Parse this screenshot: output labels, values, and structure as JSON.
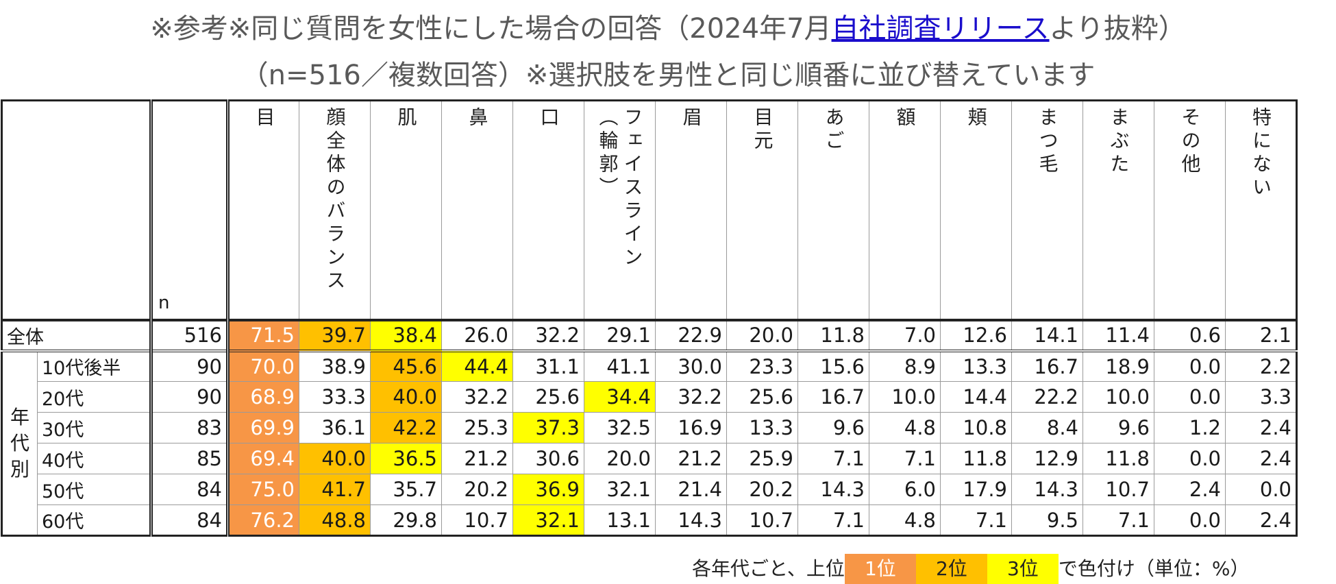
{
  "title_line1_pre": "※参考※同じ質問を女性にした場合の回答（2024年7月",
  "title_link": "自社調査リリース",
  "title_line1_post": "より抜粋）",
  "title_line2": "（n=516／複数回答）※選択肢を男性と同じ順番に並び替えています",
  "header": {
    "n": "n",
    "columns": [
      "目",
      "顔全体のバランス",
      "肌",
      "鼻",
      "口",
      "フェイスライン（輪郭）",
      "眉",
      "目元",
      "あご",
      "額",
      "頬",
      "まつ毛",
      "まぶた",
      "その他",
      "特にない"
    ]
  },
  "group_label": "年代別",
  "rows": [
    {
      "label": "全体",
      "n": "516",
      "values": [
        "71.5",
        "39.7",
        "38.4",
        "26.0",
        "32.2",
        "29.1",
        "22.9",
        "20.0",
        "11.8",
        "7.0",
        "12.6",
        "14.1",
        "11.4",
        "0.6",
        "2.1"
      ],
      "ranks": [
        1,
        2,
        3,
        0,
        0,
        0,
        0,
        0,
        0,
        0,
        0,
        0,
        0,
        0,
        0
      ]
    },
    {
      "label": "10代後半",
      "n": "90",
      "values": [
        "70.0",
        "38.9",
        "45.6",
        "44.4",
        "31.1",
        "41.1",
        "30.0",
        "23.3",
        "15.6",
        "8.9",
        "13.3",
        "16.7",
        "18.9",
        "0.0",
        "2.2"
      ],
      "ranks": [
        1,
        0,
        2,
        3,
        0,
        0,
        0,
        0,
        0,
        0,
        0,
        0,
        0,
        0,
        0
      ]
    },
    {
      "label": "20代",
      "n": "90",
      "values": [
        "68.9",
        "33.3",
        "40.0",
        "32.2",
        "25.6",
        "34.4",
        "32.2",
        "25.6",
        "16.7",
        "10.0",
        "14.4",
        "22.2",
        "10.0",
        "0.0",
        "3.3"
      ],
      "ranks": [
        1,
        0,
        2,
        0,
        0,
        3,
        0,
        0,
        0,
        0,
        0,
        0,
        0,
        0,
        0
      ]
    },
    {
      "label": "30代",
      "n": "83",
      "values": [
        "69.9",
        "36.1",
        "42.2",
        "25.3",
        "37.3",
        "32.5",
        "16.9",
        "13.3",
        "9.6",
        "4.8",
        "10.8",
        "8.4",
        "9.6",
        "1.2",
        "2.4"
      ],
      "ranks": [
        1,
        0,
        2,
        0,
        3,
        0,
        0,
        0,
        0,
        0,
        0,
        0,
        0,
        0,
        0
      ]
    },
    {
      "label": "40代",
      "n": "85",
      "values": [
        "69.4",
        "40.0",
        "36.5",
        "21.2",
        "30.6",
        "20.0",
        "21.2",
        "25.9",
        "7.1",
        "7.1",
        "11.8",
        "12.9",
        "11.8",
        "0.0",
        "2.4"
      ],
      "ranks": [
        1,
        2,
        3,
        0,
        0,
        0,
        0,
        0,
        0,
        0,
        0,
        0,
        0,
        0,
        0
      ]
    },
    {
      "label": "50代",
      "n": "84",
      "values": [
        "75.0",
        "41.7",
        "35.7",
        "20.2",
        "36.9",
        "32.1",
        "21.4",
        "20.2",
        "14.3",
        "6.0",
        "17.9",
        "14.3",
        "10.7",
        "2.4",
        "0.0"
      ],
      "ranks": [
        1,
        2,
        0,
        0,
        3,
        0,
        0,
        0,
        0,
        0,
        0,
        0,
        0,
        0,
        0
      ]
    },
    {
      "label": "60代",
      "n": "84",
      "values": [
        "76.2",
        "48.8",
        "29.8",
        "10.7",
        "32.1",
        "13.1",
        "14.3",
        "10.7",
        "7.1",
        "4.8",
        "7.1",
        "9.5",
        "7.1",
        "0.0",
        "2.4"
      ],
      "ranks": [
        1,
        2,
        0,
        0,
        3,
        0,
        0,
        0,
        0,
        0,
        0,
        0,
        0,
        0,
        0
      ]
    }
  ],
  "legend": {
    "prefix": "各年代ごと、上位",
    "rank1": "1位",
    "rank2": "2位",
    "rank3": "3位",
    "suffix": "で色付け（単位：%）"
  },
  "colors": {
    "rank1": "#f79646",
    "rank2": "#ffc000",
    "rank3": "#ffff00",
    "link": "#1a0dcc"
  }
}
